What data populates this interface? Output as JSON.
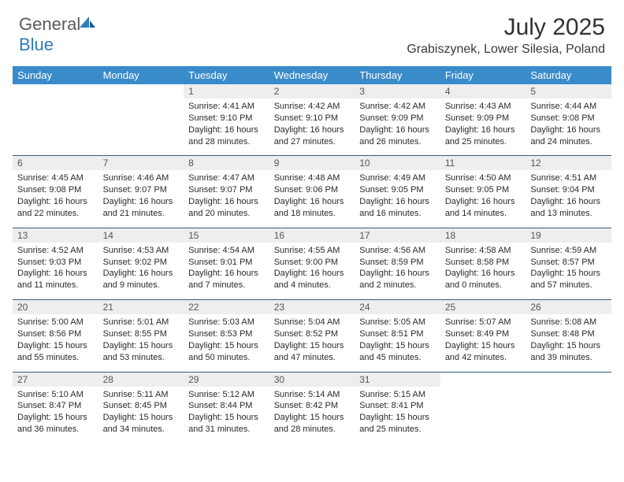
{
  "brand": {
    "part1": "General",
    "part2": "Blue"
  },
  "title": "July 2025",
  "location": "Grabiszynek, Lower Silesia, Poland",
  "colors": {
    "header_bg": "#3a8bc9",
    "header_text": "#ffffff",
    "daynum_bg": "#eeeeee",
    "daynum_text": "#555555",
    "rule": "#2d5e8a",
    "body_text": "#2a2a2a",
    "logo_gray": "#5a5a5a",
    "logo_blue": "#2f7bbf"
  },
  "day_names": [
    "Sunday",
    "Monday",
    "Tuesday",
    "Wednesday",
    "Thursday",
    "Friday",
    "Saturday"
  ],
  "weeks": [
    [
      null,
      null,
      {
        "n": "1",
        "sr": "Sunrise: 4:41 AM",
        "ss": "Sunset: 9:10 PM",
        "d1": "Daylight: 16 hours",
        "d2": "and 28 minutes."
      },
      {
        "n": "2",
        "sr": "Sunrise: 4:42 AM",
        "ss": "Sunset: 9:10 PM",
        "d1": "Daylight: 16 hours",
        "d2": "and 27 minutes."
      },
      {
        "n": "3",
        "sr": "Sunrise: 4:42 AM",
        "ss": "Sunset: 9:09 PM",
        "d1": "Daylight: 16 hours",
        "d2": "and 26 minutes."
      },
      {
        "n": "4",
        "sr": "Sunrise: 4:43 AM",
        "ss": "Sunset: 9:09 PM",
        "d1": "Daylight: 16 hours",
        "d2": "and 25 minutes."
      },
      {
        "n": "5",
        "sr": "Sunrise: 4:44 AM",
        "ss": "Sunset: 9:08 PM",
        "d1": "Daylight: 16 hours",
        "d2": "and 24 minutes."
      }
    ],
    [
      {
        "n": "6",
        "sr": "Sunrise: 4:45 AM",
        "ss": "Sunset: 9:08 PM",
        "d1": "Daylight: 16 hours",
        "d2": "and 22 minutes."
      },
      {
        "n": "7",
        "sr": "Sunrise: 4:46 AM",
        "ss": "Sunset: 9:07 PM",
        "d1": "Daylight: 16 hours",
        "d2": "and 21 minutes."
      },
      {
        "n": "8",
        "sr": "Sunrise: 4:47 AM",
        "ss": "Sunset: 9:07 PM",
        "d1": "Daylight: 16 hours",
        "d2": "and 20 minutes."
      },
      {
        "n": "9",
        "sr": "Sunrise: 4:48 AM",
        "ss": "Sunset: 9:06 PM",
        "d1": "Daylight: 16 hours",
        "d2": "and 18 minutes."
      },
      {
        "n": "10",
        "sr": "Sunrise: 4:49 AM",
        "ss": "Sunset: 9:05 PM",
        "d1": "Daylight: 16 hours",
        "d2": "and 16 minutes."
      },
      {
        "n": "11",
        "sr": "Sunrise: 4:50 AM",
        "ss": "Sunset: 9:05 PM",
        "d1": "Daylight: 16 hours",
        "d2": "and 14 minutes."
      },
      {
        "n": "12",
        "sr": "Sunrise: 4:51 AM",
        "ss": "Sunset: 9:04 PM",
        "d1": "Daylight: 16 hours",
        "d2": "and 13 minutes."
      }
    ],
    [
      {
        "n": "13",
        "sr": "Sunrise: 4:52 AM",
        "ss": "Sunset: 9:03 PM",
        "d1": "Daylight: 16 hours",
        "d2": "and 11 minutes."
      },
      {
        "n": "14",
        "sr": "Sunrise: 4:53 AM",
        "ss": "Sunset: 9:02 PM",
        "d1": "Daylight: 16 hours",
        "d2": "and 9 minutes."
      },
      {
        "n": "15",
        "sr": "Sunrise: 4:54 AM",
        "ss": "Sunset: 9:01 PM",
        "d1": "Daylight: 16 hours",
        "d2": "and 7 minutes."
      },
      {
        "n": "16",
        "sr": "Sunrise: 4:55 AM",
        "ss": "Sunset: 9:00 PM",
        "d1": "Daylight: 16 hours",
        "d2": "and 4 minutes."
      },
      {
        "n": "17",
        "sr": "Sunrise: 4:56 AM",
        "ss": "Sunset: 8:59 PM",
        "d1": "Daylight: 16 hours",
        "d2": "and 2 minutes."
      },
      {
        "n": "18",
        "sr": "Sunrise: 4:58 AM",
        "ss": "Sunset: 8:58 PM",
        "d1": "Daylight: 16 hours",
        "d2": "and 0 minutes."
      },
      {
        "n": "19",
        "sr": "Sunrise: 4:59 AM",
        "ss": "Sunset: 8:57 PM",
        "d1": "Daylight: 15 hours",
        "d2": "and 57 minutes."
      }
    ],
    [
      {
        "n": "20",
        "sr": "Sunrise: 5:00 AM",
        "ss": "Sunset: 8:56 PM",
        "d1": "Daylight: 15 hours",
        "d2": "and 55 minutes."
      },
      {
        "n": "21",
        "sr": "Sunrise: 5:01 AM",
        "ss": "Sunset: 8:55 PM",
        "d1": "Daylight: 15 hours",
        "d2": "and 53 minutes."
      },
      {
        "n": "22",
        "sr": "Sunrise: 5:03 AM",
        "ss": "Sunset: 8:53 PM",
        "d1": "Daylight: 15 hours",
        "d2": "and 50 minutes."
      },
      {
        "n": "23",
        "sr": "Sunrise: 5:04 AM",
        "ss": "Sunset: 8:52 PM",
        "d1": "Daylight: 15 hours",
        "d2": "and 47 minutes."
      },
      {
        "n": "24",
        "sr": "Sunrise: 5:05 AM",
        "ss": "Sunset: 8:51 PM",
        "d1": "Daylight: 15 hours",
        "d2": "and 45 minutes."
      },
      {
        "n": "25",
        "sr": "Sunrise: 5:07 AM",
        "ss": "Sunset: 8:49 PM",
        "d1": "Daylight: 15 hours",
        "d2": "and 42 minutes."
      },
      {
        "n": "26",
        "sr": "Sunrise: 5:08 AM",
        "ss": "Sunset: 8:48 PM",
        "d1": "Daylight: 15 hours",
        "d2": "and 39 minutes."
      }
    ],
    [
      {
        "n": "27",
        "sr": "Sunrise: 5:10 AM",
        "ss": "Sunset: 8:47 PM",
        "d1": "Daylight: 15 hours",
        "d2": "and 36 minutes."
      },
      {
        "n": "28",
        "sr": "Sunrise: 5:11 AM",
        "ss": "Sunset: 8:45 PM",
        "d1": "Daylight: 15 hours",
        "d2": "and 34 minutes."
      },
      {
        "n": "29",
        "sr": "Sunrise: 5:12 AM",
        "ss": "Sunset: 8:44 PM",
        "d1": "Daylight: 15 hours",
        "d2": "and 31 minutes."
      },
      {
        "n": "30",
        "sr": "Sunrise: 5:14 AM",
        "ss": "Sunset: 8:42 PM",
        "d1": "Daylight: 15 hours",
        "d2": "and 28 minutes."
      },
      {
        "n": "31",
        "sr": "Sunrise: 5:15 AM",
        "ss": "Sunset: 8:41 PM",
        "d1": "Daylight: 15 hours",
        "d2": "and 25 minutes."
      },
      null,
      null
    ]
  ]
}
